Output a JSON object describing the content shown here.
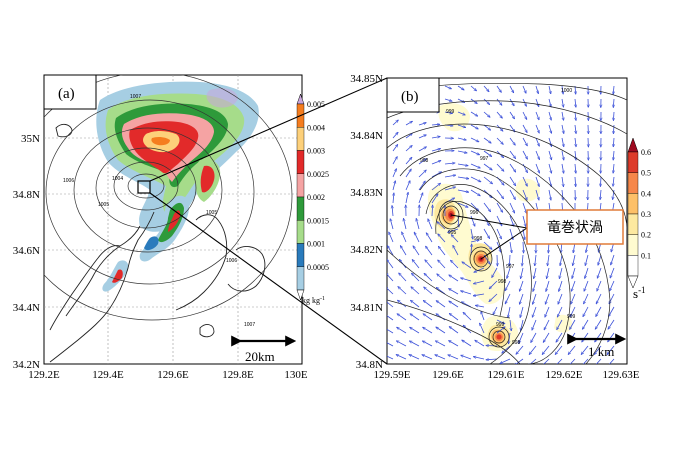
{
  "chart_data": [
    {
      "type": "heatmap",
      "panel_label": "(a)",
      "x_ticks": [
        "129.2E",
        "129.4E",
        "129.6E",
        "129.8E",
        "130E"
      ],
      "y_ticks": [
        "34.2N",
        "34.4N",
        "34.6N",
        "34.8N",
        "35N"
      ],
      "xlim": [
        129.2,
        130.0
      ],
      "ylim": [
        34.2,
        35.0
      ],
      "colorbar": {
        "levels": [
          "0.0005",
          "0.001",
          "0.0015",
          "0.002",
          "0.0025",
          "0.003",
          "0.004",
          "0.005"
        ],
        "colors": [
          "#ffffff",
          "#a6cee3",
          "#2a7bbc",
          "#a6dc8a",
          "#2e9a3a",
          "#f5a3a3",
          "#e22a2a",
          "#fdd07a",
          "#f57d1f",
          "#c9a6db"
        ],
        "units": "kg kg",
        "units_exp": "-1"
      },
      "isobar_labels": [
        "1007",
        "1006",
        "1004",
        "1005",
        "1005",
        "1006",
        "1007"
      ],
      "scale_bar": "20km"
    },
    {
      "type": "heatmap",
      "panel_label": "(b)",
      "x_ticks": [
        "129.59E",
        "129.6E",
        "129.61E",
        "129.62E",
        "129.63E"
      ],
      "y_ticks": [
        "34.8N",
        "34.81N",
        "34.82N",
        "34.83N",
        "34.84N",
        "34.85N"
      ],
      "xlim": [
        129.59,
        129.63
      ],
      "ylim": [
        34.8,
        34.85
      ],
      "colorbar": {
        "levels": [
          "0.1",
          "0.2",
          "0.3",
          "0.4",
          "0.5",
          "0.6"
        ],
        "colors": [
          "#ffffff",
          "#fffbd0",
          "#fde9a0",
          "#fdc068",
          "#f6874a",
          "#dd3b2a",
          "#9e0a20"
        ],
        "units": "s",
        "units_exp": "-1"
      },
      "isobar_labels": [
        "1000",
        "999",
        "998",
        "997",
        "996",
        "995",
        "998",
        "997",
        "998",
        "999",
        "999",
        "998"
      ],
      "vortices": [
        {
          "x": 129.6045,
          "y": 34.8262
        },
        {
          "x": 129.6075,
          "y": 34.8182
        },
        {
          "x": 129.6115,
          "y": 34.8045
        }
      ],
      "annotation": "竜巻状渦",
      "scale_bar": "1 km"
    }
  ]
}
